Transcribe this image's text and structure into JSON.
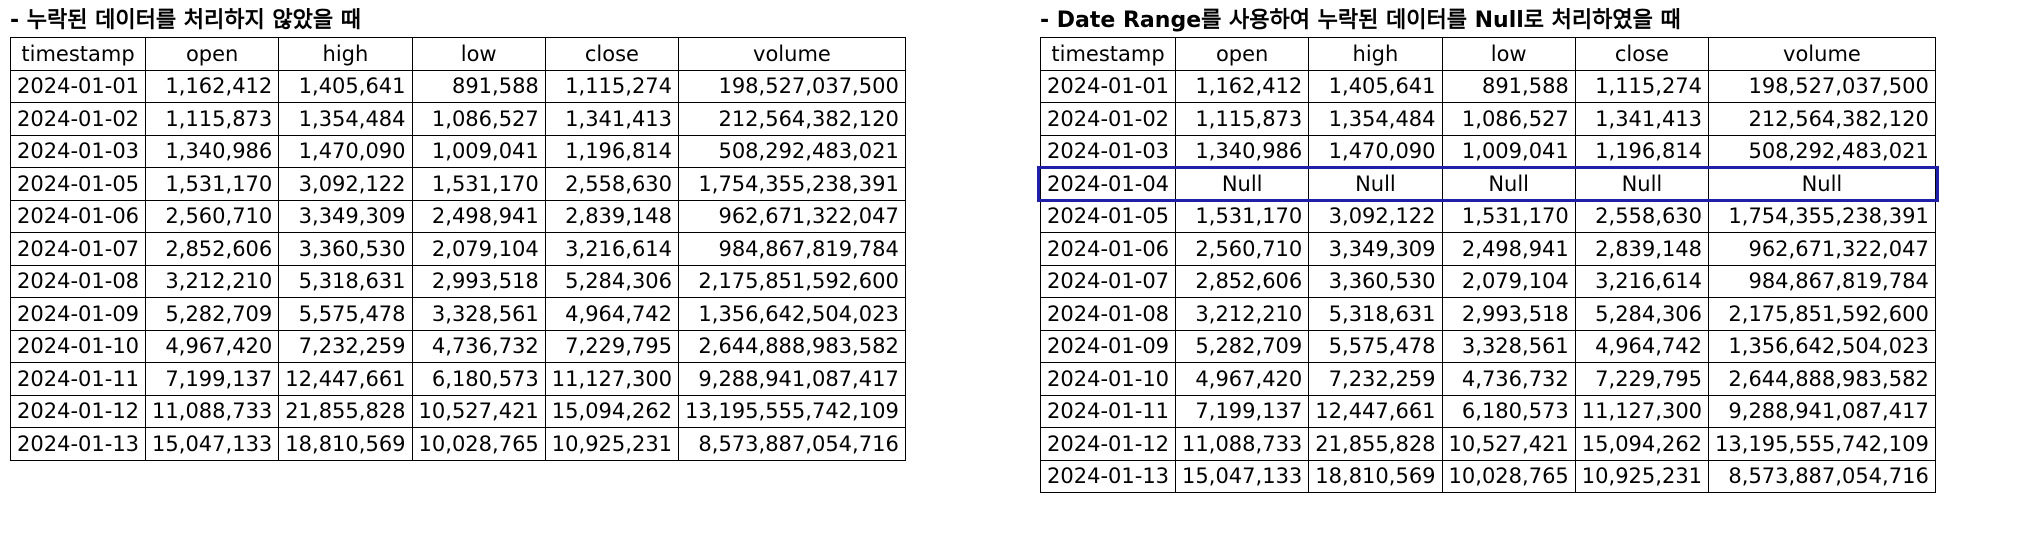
{
  "left_panel": {
    "title": "- 누락된 데이터를 처리하지 않았을 때",
    "columns": [
      "timestamp",
      "open",
      "high",
      "low",
      "close",
      "volume"
    ],
    "rows": [
      [
        "2024-01-01",
        "1,162,412",
        "1,405,641",
        "891,588",
        "1,115,274",
        "198,527,037,500"
      ],
      [
        "2024-01-02",
        "1,115,873",
        "1,354,484",
        "1,086,527",
        "1,341,413",
        "212,564,382,120"
      ],
      [
        "2024-01-03",
        "1,340,986",
        "1,470,090",
        "1,009,041",
        "1,196,814",
        "508,292,483,021"
      ],
      [
        "2024-01-05",
        "1,531,170",
        "3,092,122",
        "1,531,170",
        "2,558,630",
        "1,754,355,238,391"
      ],
      [
        "2024-01-06",
        "2,560,710",
        "3,349,309",
        "2,498,941",
        "2,839,148",
        "962,671,322,047"
      ],
      [
        "2024-01-07",
        "2,852,606",
        "3,360,530",
        "2,079,104",
        "3,216,614",
        "984,867,819,784"
      ],
      [
        "2024-01-08",
        "3,212,210",
        "5,318,631",
        "2,993,518",
        "5,284,306",
        "2,175,851,592,600"
      ],
      [
        "2024-01-09",
        "5,282,709",
        "5,575,478",
        "3,328,561",
        "4,964,742",
        "1,356,642,504,023"
      ],
      [
        "2024-01-10",
        "4,967,420",
        "7,232,259",
        "4,736,732",
        "7,229,795",
        "2,644,888,983,582"
      ],
      [
        "2024-01-11",
        "7,199,137",
        "12,447,661",
        "6,180,573",
        "11,127,300",
        "9,288,941,087,417"
      ],
      [
        "2024-01-12",
        "11,088,733",
        "21,855,828",
        "10,527,421",
        "15,094,262",
        "13,195,555,742,109"
      ],
      [
        "2024-01-13",
        "15,047,133",
        "18,810,569",
        "10,028,765",
        "10,925,231",
        "8,573,887,054,716"
      ]
    ]
  },
  "right_panel": {
    "title": "- Date Range를 사용하여 누락된 데이터를 Null로 처리하였을 때",
    "columns": [
      "timestamp",
      "open",
      "high",
      "low",
      "close",
      "volume"
    ],
    "highlighted_row_index": 3,
    "highlight_color": "#1f1fa8",
    "rows": [
      [
        "2024-01-01",
        "1,162,412",
        "1,405,641",
        "891,588",
        "1,115,274",
        "198,527,037,500"
      ],
      [
        "2024-01-02",
        "1,115,873",
        "1,354,484",
        "1,086,527",
        "1,341,413",
        "212,564,382,120"
      ],
      [
        "2024-01-03",
        "1,340,986",
        "1,470,090",
        "1,009,041",
        "1,196,814",
        "508,292,483,021"
      ],
      [
        "2024-01-04",
        "Null",
        "Null",
        "Null",
        "Null",
        "Null"
      ],
      [
        "2024-01-05",
        "1,531,170",
        "3,092,122",
        "1,531,170",
        "2,558,630",
        "1,754,355,238,391"
      ],
      [
        "2024-01-06",
        "2,560,710",
        "3,349,309",
        "2,498,941",
        "2,839,148",
        "962,671,322,047"
      ],
      [
        "2024-01-07",
        "2,852,606",
        "3,360,530",
        "2,079,104",
        "3,216,614",
        "984,867,819,784"
      ],
      [
        "2024-01-08",
        "3,212,210",
        "5,318,631",
        "2,993,518",
        "5,284,306",
        "2,175,851,592,600"
      ],
      [
        "2024-01-09",
        "5,282,709",
        "5,575,478",
        "3,328,561",
        "4,964,742",
        "1,356,642,504,023"
      ],
      [
        "2024-01-10",
        "4,967,420",
        "7,232,259",
        "4,736,732",
        "7,229,795",
        "2,644,888,983,582"
      ],
      [
        "2024-01-11",
        "7,199,137",
        "12,447,661",
        "6,180,573",
        "11,127,300",
        "9,288,941,087,417"
      ],
      [
        "2024-01-12",
        "11,088,733",
        "21,855,828",
        "10,527,421",
        "15,094,262",
        "13,195,555,742,109"
      ],
      [
        "2024-01-13",
        "15,047,133",
        "18,810,569",
        "10,028,765",
        "10,925,231",
        "8,573,887,054,716"
      ]
    ]
  }
}
